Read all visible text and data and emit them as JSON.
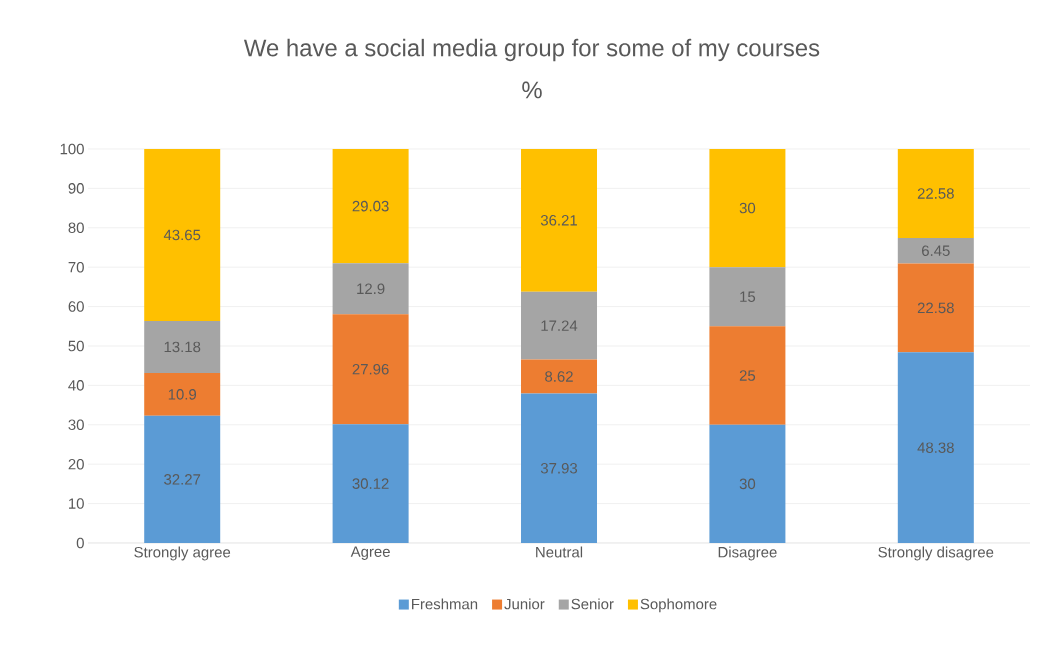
{
  "chart_data": {
    "type": "bar",
    "stacked": true,
    "title": "We have a social media group for some of my courses",
    "subtitle": "%",
    "categories": [
      "Strongly agree",
      "Agree",
      "Neutral",
      "Disagree",
      "Strongly disagree"
    ],
    "series": [
      {
        "name": "Freshman",
        "color": "#5b9bd5",
        "values": [
          32.27,
          30.12,
          37.93,
          30,
          48.38
        ]
      },
      {
        "name": "Junior",
        "color": "#ed7d31",
        "values": [
          10.9,
          27.96,
          8.62,
          25,
          22.58
        ]
      },
      {
        "name": "Senior",
        "color": "#a5a5a5",
        "values": [
          13.18,
          12.9,
          17.24,
          15,
          6.45
        ]
      },
      {
        "name": "Sophomore",
        "color": "#ffc000",
        "values": [
          43.65,
          29.03,
          36.21,
          30,
          22.58
        ]
      }
    ],
    "ylim": [
      0,
      100
    ],
    "yticks": [
      0,
      10,
      20,
      30,
      40,
      50,
      60,
      70,
      80,
      90,
      100
    ],
    "grid": "y",
    "legend": "bottom",
    "data_labels": true
  }
}
